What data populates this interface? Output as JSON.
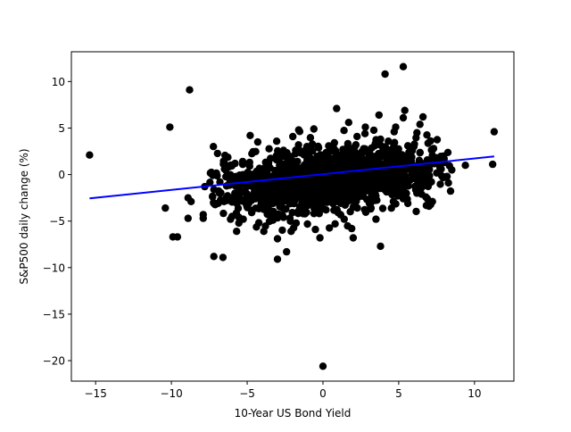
{
  "chart_data": {
    "type": "scatter",
    "title": "",
    "xlabel": "10-Year US Bond Yield",
    "ylabel": "S&P500 daily change (%)",
    "xlim": [
      -16.6,
      12.6
    ],
    "ylim": [
      -22.2,
      13.2
    ],
    "xticks": [
      -15,
      -10,
      -5,
      0,
      5,
      10
    ],
    "yticks": [
      -20,
      -15,
      -10,
      -5,
      0,
      5,
      10
    ],
    "xtick_labels": [
      "−15",
      "−10",
      "−5",
      "0",
      "5",
      "10"
    ],
    "ytick_labels": [
      "−20",
      "−15",
      "−10",
      "−5",
      "0",
      "5",
      "10"
    ],
    "grid": false,
    "marker_color": "#000000",
    "line_color": "#0000ff",
    "regression_line": {
      "x": [
        -15.4,
        11.3
      ],
      "y": [
        -2.55,
        1.95
      ]
    },
    "series": [
      {
        "values": [
          [
            -15.4,
            2.1
          ],
          [
            -10.1,
            5.1
          ],
          [
            -8.8,
            9.1
          ],
          [
            -10.4,
            -3.6
          ],
          [
            -9.9,
            -6.7
          ],
          [
            -9.6,
            -6.7
          ],
          [
            -8.9,
            -2.5
          ],
          [
            -8.7,
            -2.9
          ],
          [
            -8.9,
            -4.7
          ],
          [
            -7.9,
            -4.3
          ],
          [
            -7.9,
            -4.7
          ],
          [
            -7.8,
            -1.3
          ],
          [
            -7.2,
            -8.8
          ],
          [
            -6.6,
            -8.9
          ],
          [
            -7.2,
            -1.6
          ],
          [
            -7.2,
            -3.1
          ],
          [
            -6.8,
            -0.8
          ],
          [
            -6.5,
            1.2
          ],
          [
            -6.5,
            0.6
          ],
          [
            -6.1,
            -0.2
          ],
          [
            -5.8,
            1.2
          ],
          [
            -6.0,
            -4.5
          ],
          [
            -5.7,
            -6.1
          ],
          [
            -6.1,
            -4.8
          ],
          [
            -4.8,
            4.2
          ],
          [
            -4.3,
            3.5
          ],
          [
            -5.5,
            -2.5
          ],
          [
            -3.9,
            -6.1
          ],
          [
            -3.0,
            -9.1
          ],
          [
            -3.0,
            -6.9
          ],
          [
            -2.1,
            -6.1
          ],
          [
            -3.3,
            -4.9
          ],
          [
            -2.4,
            -8.3
          ],
          [
            -1.9,
            -1.6
          ],
          [
            -0.5,
            -5.9
          ],
          [
            0.2,
            -3.8
          ],
          [
            -0.2,
            -6.8
          ],
          [
            0.0,
            -20.6
          ],
          [
            0.8,
            -5.3
          ],
          [
            1.4,
            -4.8
          ],
          [
            1.9,
            -5.8
          ],
          [
            2.0,
            -6.8
          ],
          [
            3.5,
            -4.8
          ],
          [
            3.8,
            -7.7
          ],
          [
            4.1,
            10.8
          ],
          [
            5.3,
            11.6
          ],
          [
            5.4,
            6.9
          ],
          [
            5.3,
            6.1
          ],
          [
            4.8,
            5.1
          ],
          [
            3.7,
            6.4
          ],
          [
            2.8,
            5.1
          ],
          [
            1.7,
            5.6
          ],
          [
            0.9,
            7.1
          ],
          [
            -0.6,
            4.9
          ],
          [
            -1.6,
            4.8
          ],
          [
            -2.6,
            2.6
          ],
          [
            -1.1,
            2.5
          ],
          [
            3.8,
            3.8
          ],
          [
            4.7,
            4.6
          ],
          [
            6.4,
            5.4
          ],
          [
            6.6,
            6.2
          ],
          [
            6.2,
            4.5
          ],
          [
            5.6,
            3.1
          ],
          [
            7.3,
            2.8
          ],
          [
            7.0,
            -3.4
          ],
          [
            6.5,
            -2.1
          ],
          [
            5.3,
            -2.6
          ],
          [
            7.0,
            1.4
          ],
          [
            7.5,
            1.8
          ],
          [
            8.0,
            1.3
          ],
          [
            8.5,
            0.5
          ],
          [
            9.4,
            1.0
          ],
          [
            11.3,
            4.6
          ],
          [
            11.2,
            1.1
          ],
          [
            5.6,
            -3.1
          ],
          [
            6.0,
            3.0
          ],
          [
            -1.3,
            -4.2
          ],
          [
            -2.6,
            -4.6
          ],
          [
            1.0,
            -4.1
          ],
          [
            2.0,
            -3.5
          ]
        ]
      }
    ],
    "cluster": {
      "center": [
        0.4,
        -0.5
      ],
      "spread": [
        3.7,
        1.65
      ],
      "count": 1500
    }
  }
}
